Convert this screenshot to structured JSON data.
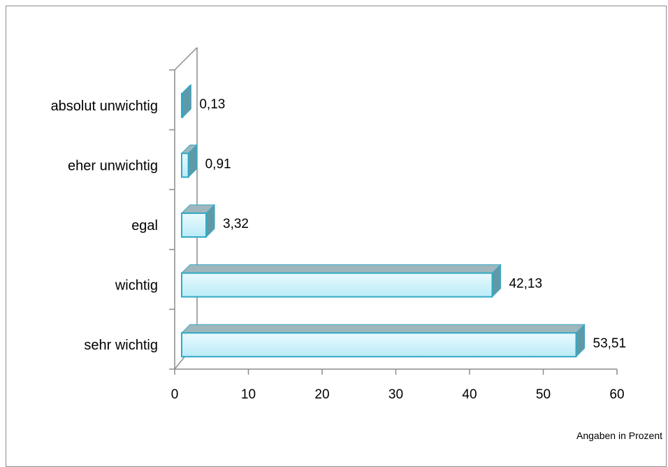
{
  "chart_data": {
    "type": "bar",
    "orientation": "horizontal",
    "style": "3d",
    "categories": [
      "absolut unwichtig",
      "eher unwichtig",
      "egal",
      "wichtig",
      "sehr wichtig"
    ],
    "values": [
      0.13,
      0.91,
      3.32,
      42.13,
      53.51
    ],
    "value_labels": [
      "0,13",
      "0,91",
      "3,32",
      "42,13",
      "53,51"
    ],
    "xlim": [
      0,
      60
    ],
    "x_ticks": [
      "0",
      "10",
      "20",
      "30",
      "40",
      "50",
      "60"
    ],
    "grid": false,
    "legend": "none",
    "title": "",
    "note": "Angaben in Prozent",
    "colors": {
      "bar_fill_top": "#eafafe",
      "bar_fill_bottom": "#b9ebf7",
      "bar_edge": "#31a9c4",
      "bar_top_face": "#9fb6bd",
      "bar_side_face": "#5f99a8",
      "axis": "#8c8c8c"
    }
  }
}
